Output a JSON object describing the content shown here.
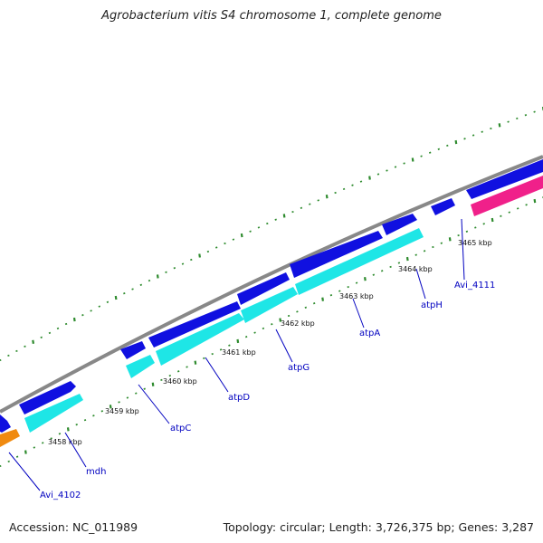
{
  "title": "Agrobacterium vitis S4 chromosome 1, complete genome",
  "footer": {
    "accession": "Accession: NC_011989",
    "summary": "Topology: circular; Length: 3,726,375 bp; Genes: 3,287"
  },
  "colors": {
    "backbone": "#888888",
    "tick": "#2e8b2e",
    "forward_gene": "#1010e0",
    "reverse_gene": "#1ee6e6",
    "orange_gene": "#f08a10",
    "pink_gene": "#f0208a",
    "label": "#0000c0"
  },
  "kbp_labels": [
    "3458 kbp",
    "3459 kbp",
    "3460 kbp",
    "3461 kbp",
    "3462 kbp",
    "3463 kbp",
    "3464 kbp",
    "3465 kbp"
  ],
  "gene_labels": [
    "Avi_4102",
    "mdh",
    "atpC",
    "atpD",
    "atpG",
    "atpA",
    "atpH",
    "Avi_4111"
  ]
}
